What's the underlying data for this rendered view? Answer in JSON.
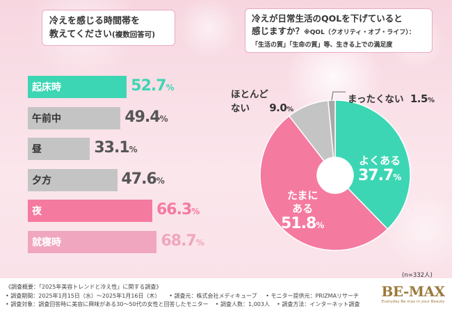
{
  "left_panel": {
    "title_line1": "冷えを感じる時間帯を",
    "title_line2": "教えてください",
    "title_sub": "(複数回答可)"
  },
  "right_panel": {
    "title_line1": "冷えが日常生活のQOLを下げていると",
    "title_line2": "感じますか？",
    "title_note1": "※QOL（クオリティ・オブ・ライフ）：",
    "title_note2": "「生活の質」「生命の質」等、生きる上での満足度",
    "n_note": "(n=332人)"
  },
  "chart_data": [
    {
      "type": "bar",
      "orientation": "horizontal",
      "title": "冷えを感じる時間帯を教えてください(複数回答可)",
      "categories": [
        "起床時",
        "午前中",
        "昼",
        "夕方",
        "夜",
        "就寝時"
      ],
      "values": [
        52.7,
        49.4,
        33.1,
        47.6,
        66.3,
        68.7
      ],
      "value_labels": [
        "52.7",
        "49.4",
        "33.1",
        "47.6",
        "66.3",
        "68.7"
      ],
      "unit": "%",
      "xlim": [
        0,
        100
      ],
      "colors": [
        "#3dd6b4",
        "#c4c4c4",
        "#c4c4c4",
        "#c4c4c4",
        "#f47aa0",
        "#f0a6be"
      ],
      "value_colors": [
        "#3dd6b4",
        "#555555",
        "#555555",
        "#555555",
        "#f47aa0",
        "#f0a6be"
      ]
    },
    {
      "type": "pie",
      "title": "冷えが日常生活のQOLを下げていると感じますか？",
      "start_angle_deg": 0,
      "slices": [
        {
          "label": "よくある",
          "value": 37.7,
          "value_label": "37.7",
          "color": "#3dd6b4"
        },
        {
          "label": "たまにある",
          "value": 51.8,
          "value_label": "51.8",
          "color": "#f47aa0"
        },
        {
          "label": "ほとんどない",
          "value": 9.0,
          "value_label": "9.0",
          "color": "#c4c4c4"
        },
        {
          "label": "まったくない",
          "value": 1.5,
          "value_label": "1.5",
          "color": "#a8a8a8"
        }
      ],
      "unit": "%",
      "label_name_lines": [
        [
          "よくある"
        ],
        [
          "たまに",
          "ある"
        ],
        [
          "ほとんど",
          "ない"
        ],
        [
          "まったくない"
        ]
      ]
    }
  ],
  "footer": {
    "line1": "《調査概要：「2025年美容トレンドと冷え性」に関する調査》",
    "line2a": "• 調査期間：2025年1月15日（水）～2025年1月16日（木）",
    "line2b": "• 調査元：株式会社メディキュープ",
    "line2c": "• モニター提供元：PRIZMAリサーチ",
    "line3a": "• 調査対象：調査回答時に美容に興味がある30～50代の女性と回答したモニター",
    "line3b": "• 調査人数：1,003人",
    "line3c": "• 調査方法：インターネット調査",
    "logo_text": "BE-MAX",
    "logo_tagline": "Everyday Be max in your Beauty"
  }
}
